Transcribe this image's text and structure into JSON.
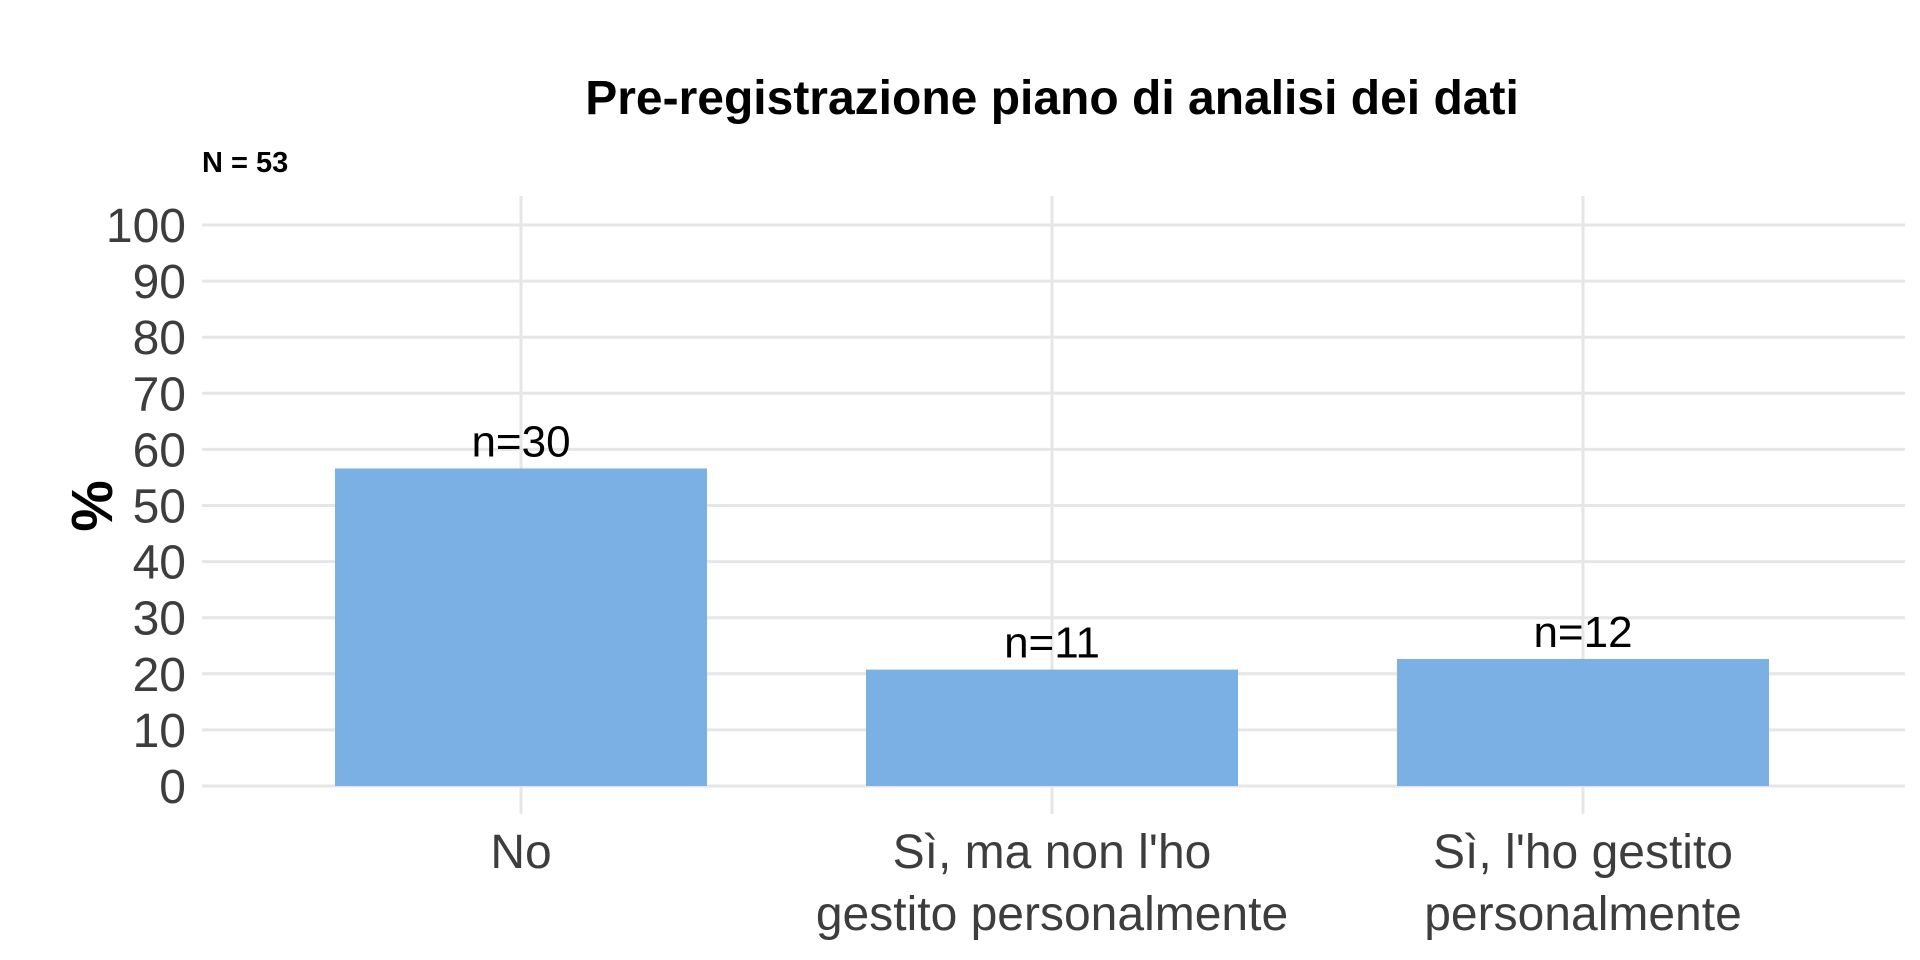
{
  "chart_data": {
    "type": "bar",
    "title": "Pre-registrazione piano di analisi dei dati",
    "subtitle": "N = 53",
    "xlabel": "",
    "ylabel": "%",
    "ylim": [
      0,
      100
    ],
    "yticks": [
      0,
      10,
      20,
      30,
      40,
      50,
      60,
      70,
      80,
      90,
      100
    ],
    "categories": [
      [
        "No"
      ],
      [
        "Sì, ma non l'ho",
        "gestito personalmente"
      ],
      [
        "Sì, l'ho gestito",
        "personalmente"
      ]
    ],
    "values": [
      56.6,
      20.75,
      22.64
    ],
    "data_labels": [
      "n=30",
      "n=11",
      "n=12"
    ],
    "grid": true,
    "legend": "none",
    "colors": {
      "bar": "#7ab0e4",
      "grid": "#e6e6e6",
      "tick_text": "#3d3d3d",
      "text": "#000000"
    }
  }
}
